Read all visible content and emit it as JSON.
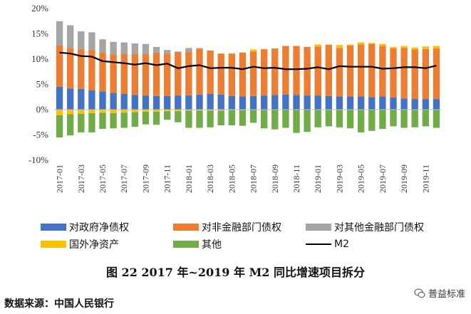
{
  "chart_data": {
    "type": "bar",
    "stacked": true,
    "categories": [
      "2017-01",
      "2017-02",
      "2017-03",
      "2017-04",
      "2017-05",
      "2017-06",
      "2017-07",
      "2017-08",
      "2017-09",
      "2017-10",
      "2017-11",
      "2017-12",
      "2018-01",
      "2018-02",
      "2018-03",
      "2018-04",
      "2018-05",
      "2018-06",
      "2018-07",
      "2018-08",
      "2018-09",
      "2018-10",
      "2018-11",
      "2018-12",
      "2019-01",
      "2019-02",
      "2019-03",
      "2019-04",
      "2019-05",
      "2019-06",
      "2019-07",
      "2019-08",
      "2019-09",
      "2019-10",
      "2019-11",
      "2019-12"
    ],
    "x_tick_labels": [
      "2017-01",
      "2017-03",
      "2017-05",
      "2017-07",
      "2017-09",
      "2017-11",
      "2018-01",
      "2018-03",
      "2018-05",
      "2018-07",
      "2018-09",
      "2018-11",
      "2019-01",
      "2019-03",
      "2019-05",
      "2019-07",
      "2019-09",
      "2019-11"
    ],
    "series": [
      {
        "name": "对政府净债权",
        "color": "#4472C4",
        "values": [
          4.5,
          4.2,
          4.1,
          3.8,
          3.6,
          3.3,
          3.1,
          2.9,
          2.8,
          2.7,
          2.7,
          2.8,
          2.8,
          3.0,
          3.1,
          3.0,
          2.7,
          2.6,
          2.7,
          2.8,
          2.9,
          3.0,
          2.9,
          2.8,
          2.8,
          2.7,
          2.6,
          2.6,
          2.6,
          2.5,
          2.6,
          2.4,
          2.2,
          2.1,
          2.1,
          2.1
        ]
      },
      {
        "name": "对非金融部门债权",
        "color": "#ED7D31",
        "values": [
          8.3,
          8.0,
          7.9,
          8.0,
          7.7,
          7.6,
          7.9,
          8.1,
          8.2,
          8.6,
          8.4,
          8.6,
          8.7,
          9.0,
          8.6,
          8.1,
          8.4,
          8.7,
          8.8,
          9.1,
          9.2,
          9.6,
          9.7,
          9.6,
          9.7,
          10.1,
          9.6,
          10.1,
          10.3,
          10.5,
          10.0,
          9.7,
          10.0,
          9.8,
          9.9,
          10.0
        ]
      },
      {
        "name": "对其他金融部门债权",
        "color": "#A5A5A5",
        "values": [
          4.7,
          4.5,
          3.5,
          3.5,
          2.6,
          2.5,
          2.3,
          2.1,
          2.0,
          1.1,
          0.7,
          0.1,
          0.7,
          0.2,
          0.0,
          0.0,
          0.0,
          0.0,
          0.0,
          0.0,
          0.0,
          0.0,
          0.0,
          0.0,
          0.0,
          0.0,
          0.0,
          0.0,
          0.0,
          0.0,
          0.0,
          0.0,
          0.0,
          0.0,
          0.0,
          0.0
        ]
      },
      {
        "name": "国外净资产",
        "color": "#FFC000",
        "values": [
          -1.1,
          -0.9,
          -0.8,
          -0.7,
          -0.6,
          -0.7,
          -0.6,
          -0.5,
          -0.4,
          -0.4,
          -0.3,
          -0.3,
          -0.2,
          -0.2,
          -0.2,
          -0.2,
          -0.1,
          -0.1,
          0.4,
          0.1,
          0.0,
          0.0,
          0.0,
          0.0,
          0.4,
          0.1,
          0.6,
          0.2,
          0.4,
          0.2,
          0.4,
          0.3,
          0.4,
          0.4,
          0.5,
          0.5
        ]
      },
      {
        "name": "其他",
        "color": "#70AD47",
        "values": [
          -4.4,
          -4.2,
          -3.7,
          -3.8,
          -3.2,
          -3.0,
          -3.0,
          -2.9,
          -2.5,
          -2.6,
          -1.7,
          -2.2,
          -3.4,
          -3.4,
          -3.3,
          -2.9,
          -3.0,
          -3.1,
          -2.6,
          -3.7,
          -3.9,
          -3.6,
          -4.6,
          -4.4,
          -3.5,
          -3.3,
          -3.5,
          -3.7,
          -4.5,
          -4.2,
          -3.8,
          -3.3,
          -3.6,
          -3.5,
          -3.3,
          -3.6
        ]
      }
    ],
    "line": {
      "name": "M2",
      "color": "#000000",
      "values": [
        11.3,
        11.1,
        10.6,
        10.5,
        9.6,
        9.4,
        9.2,
        8.9,
        9.2,
        8.8,
        9.1,
        8.2,
        8.6,
        8.8,
        8.2,
        8.3,
        8.3,
        8.0,
        8.5,
        8.2,
        8.3,
        8.0,
        8.0,
        8.1,
        8.4,
        8.0,
        8.6,
        8.5,
        8.5,
        8.5,
        8.1,
        8.2,
        8.4,
        8.4,
        8.2,
        8.7
      ]
    },
    "ylim": [
      -10,
      20
    ],
    "yticks": [
      -10,
      -5,
      0,
      5,
      10,
      15,
      20
    ],
    "ytick_labels": [
      "-10%",
      "-5%",
      "0%",
      "5%",
      "10%",
      "15%",
      "20%"
    ],
    "grid": false,
    "legend_position": "bottom"
  },
  "legend": {
    "items": [
      {
        "label": "对政府净债权",
        "color": "#4472C4",
        "kind": "bar"
      },
      {
        "label": "对非金融部门债权",
        "color": "#ED7D31",
        "kind": "bar"
      },
      {
        "label": "对其他金融部门债权",
        "color": "#A5A5A5",
        "kind": "bar"
      },
      {
        "label": "国外净资产",
        "color": "#FFC000",
        "kind": "bar"
      },
      {
        "label": "其他",
        "color": "#70AD47",
        "kind": "bar"
      },
      {
        "label": "M2",
        "color": "#000000",
        "kind": "line"
      }
    ]
  },
  "caption": "图 22 2017 年~2019 年 M2 同比增速项目拆分",
  "source": "数据来源：中国人民银行",
  "watermark": {
    "text": "普益标准",
    "icon": "wechat-icon"
  }
}
